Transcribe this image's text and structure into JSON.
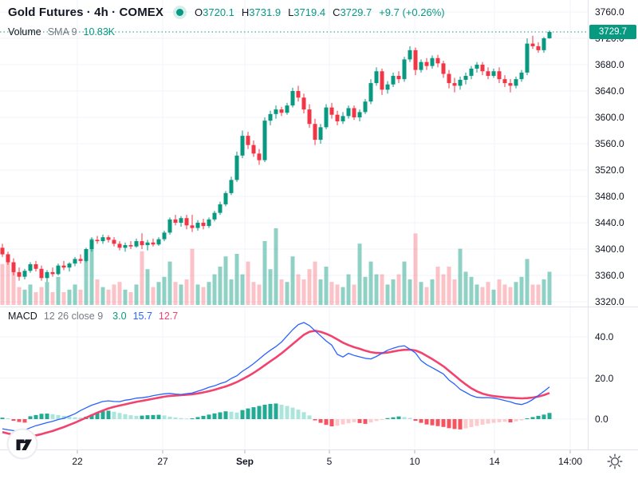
{
  "header": {
    "symbol_title": "Gold Futures · 4h · COMEX",
    "status_dot_color": "#089981",
    "ohlc": {
      "o_label": "O",
      "o": "3720.1",
      "h_label": "H",
      "h": "3731.9",
      "l_label": "L",
      "l": "3719.4",
      "c_label": "C",
      "c": "3729.7",
      "change": "+9.7 (+0.26%)"
    }
  },
  "volume_row": {
    "label": "Volume",
    "sma_label": "SMA 9",
    "value": "10.83K"
  },
  "macd_row": {
    "label": "MACD",
    "params": "12 26 close 9",
    "hist_value": "3.0",
    "macd_value": "15.7",
    "signal_value": "12.7"
  },
  "price_axis": {
    "ticks": [
      3760,
      3720,
      3680,
      3640,
      3600,
      3560,
      3520,
      3480,
      3440,
      3400,
      3360,
      3320
    ],
    "last_price": "3729.7"
  },
  "macd_axis": {
    "ticks": [
      40,
      20,
      0
    ]
  },
  "time_axis": {
    "ticks": [
      {
        "label": "22",
        "emphasis": false
      },
      {
        "label": "27",
        "emphasis": false
      },
      {
        "label": "Sep",
        "emphasis": true
      },
      {
        "label": "5",
        "emphasis": false
      },
      {
        "label": "10",
        "emphasis": false
      },
      {
        "label": "14",
        "emphasis": false
      },
      {
        "label": "14:00",
        "emphasis": false
      }
    ]
  },
  "icons": {
    "logo": "tradingview-logo",
    "theme_toggle": "sun-icon",
    "status": "market-status-dot"
  },
  "colors": {
    "up": "#089981",
    "down": "#F23645",
    "vol_up": "rgba(8,153,129,0.45)",
    "vol_down": "rgba(242,54,69,0.30)",
    "macd_line": "#2962FF",
    "signal_line": "#F2426E",
    "hist_pos_strong": "#22AB94",
    "hist_pos_weak": "#ACE5DC",
    "hist_neg_strong": "#F7525F",
    "hist_neg_weak": "#FCCBCD",
    "grid": "#F0F3FA",
    "separator": "#E0E3EB",
    "text_dark": "#131722",
    "text_gray": "#787B86",
    "tag_bg": "#089981",
    "tick_mark": "#B2B5BE"
  },
  "chart_data": {
    "type": "candlestick+volume+macd",
    "title": "Gold Futures · 4h · COMEX",
    "interval": "4h",
    "legend": [
      "Volume SMA 9",
      "MACD 12 26 close 9"
    ],
    "price_ylim": [
      3310,
      3765
    ],
    "macd_ylim": [
      -15,
      52
    ],
    "price_axis_ticks": [
      3760,
      3720,
      3680,
      3640,
      3600,
      3560,
      3520,
      3480,
      3440,
      3400,
      3360,
      3320
    ],
    "macd_axis_ticks": [
      40,
      20,
      0
    ],
    "time_ticks": [
      "22",
      "27",
      "Sep",
      "5",
      "10",
      "14",
      "14:00"
    ],
    "last_price": 3729.7,
    "last_bar_ohlc": [
      3720.1,
      3731.9,
      3719.4,
      3729.7
    ],
    "volume_sma": "10.83K",
    "candles_ohlc": [
      [
        3402,
        3408,
        3388,
        3392
      ],
      [
        3392,
        3396,
        3376,
        3380
      ],
      [
        3380,
        3386,
        3360,
        3365
      ],
      [
        3365,
        3372,
        3352,
        3358
      ],
      [
        3358,
        3370,
        3354,
        3367
      ],
      [
        3367,
        3380,
        3364,
        3377
      ],
      [
        3377,
        3382,
        3366,
        3370
      ],
      [
        3370,
        3375,
        3352,
        3356
      ],
      [
        3356,
        3368,
        3350,
        3365
      ],
      [
        3365,
        3372,
        3358,
        3362
      ],
      [
        3362,
        3378,
        3360,
        3375
      ],
      [
        3375,
        3382,
        3368,
        3372
      ],
      [
        3372,
        3380,
        3366,
        3378
      ],
      [
        3378,
        3388,
        3374,
        3385
      ],
      [
        3385,
        3392,
        3378,
        3382
      ],
      [
        3382,
        3402,
        3380,
        3400
      ],
      [
        3400,
        3418,
        3396,
        3414
      ],
      [
        3414,
        3420,
        3408,
        3412
      ],
      [
        3412,
        3422,
        3408,
        3418
      ],
      [
        3418,
        3421,
        3410,
        3414
      ],
      [
        3414,
        3418,
        3404,
        3408
      ],
      [
        3408,
        3412,
        3398,
        3402
      ],
      [
        3402,
        3410,
        3396,
        3406
      ],
      [
        3406,
        3412,
        3400,
        3404
      ],
      [
        3404,
        3416,
        3402,
        3412
      ],
      [
        3412,
        3424,
        3400,
        3406
      ],
      [
        3406,
        3414,
        3398,
        3410
      ],
      [
        3410,
        3416,
        3404,
        3407
      ],
      [
        3407,
        3418,
        3405,
        3415
      ],
      [
        3415,
        3428,
        3412,
        3425
      ],
      [
        3425,
        3448,
        3422,
        3445
      ],
      [
        3445,
        3452,
        3436,
        3440
      ],
      [
        3440,
        3450,
        3434,
        3447
      ],
      [
        3447,
        3452,
        3430,
        3436
      ],
      [
        3436,
        3452,
        3426,
        3432
      ],
      [
        3432,
        3444,
        3428,
        3440
      ],
      [
        3440,
        3446,
        3430,
        3435
      ],
      [
        3435,
        3448,
        3432,
        3445
      ],
      [
        3445,
        3458,
        3442,
        3455
      ],
      [
        3455,
        3472,
        3452,
        3468
      ],
      [
        3468,
        3488,
        3465,
        3485
      ],
      [
        3485,
        3510,
        3482,
        3505
      ],
      [
        3505,
        3548,
        3502,
        3542
      ],
      [
        3542,
        3580,
        3538,
        3572
      ],
      [
        3572,
        3578,
        3552,
        3558
      ],
      [
        3558,
        3565,
        3540,
        3545
      ],
      [
        3545,
        3552,
        3528,
        3535
      ],
      [
        3535,
        3600,
        3532,
        3595
      ],
      [
        3595,
        3610,
        3588,
        3605
      ],
      [
        3605,
        3618,
        3598,
        3612
      ],
      [
        3612,
        3616,
        3602,
        3607
      ],
      [
        3607,
        3622,
        3604,
        3618
      ],
      [
        3618,
        3645,
        3615,
        3640
      ],
      [
        3640,
        3648,
        3624,
        3630
      ],
      [
        3630,
        3636,
        3606,
        3612
      ],
      [
        3612,
        3620,
        3584,
        3590
      ],
      [
        3590,
        3598,
        3558,
        3566
      ],
      [
        3566,
        3590,
        3560,
        3585
      ],
      [
        3585,
        3620,
        3582,
        3615
      ],
      [
        3615,
        3622,
        3598,
        3604
      ],
      [
        3604,
        3610,
        3588,
        3594
      ],
      [
        3594,
        3608,
        3590,
        3602
      ],
      [
        3602,
        3618,
        3598,
        3614
      ],
      [
        3614,
        3618,
        3596,
        3600
      ],
      [
        3600,
        3612,
        3594,
        3608
      ],
      [
        3608,
        3628,
        3605,
        3624
      ],
      [
        3624,
        3658,
        3620,
        3652
      ],
      [
        3652,
        3676,
        3648,
        3670
      ],
      [
        3670,
        3674,
        3634,
        3642
      ],
      [
        3642,
        3655,
        3636,
        3650
      ],
      [
        3650,
        3668,
        3646,
        3663
      ],
      [
        3663,
        3670,
        3652,
        3658
      ],
      [
        3658,
        3692,
        3654,
        3688
      ],
      [
        3688,
        3708,
        3684,
        3702
      ],
      [
        3702,
        3706,
        3664,
        3672
      ],
      [
        3672,
        3688,
        3668,
        3684
      ],
      [
        3684,
        3690,
        3672,
        3678
      ],
      [
        3678,
        3694,
        3674,
        3690
      ],
      [
        3690,
        3695,
        3676,
        3682
      ],
      [
        3682,
        3686,
        3660,
        3666
      ],
      [
        3666,
        3672,
        3644,
        3652
      ],
      [
        3652,
        3660,
        3638,
        3648
      ],
      [
        3648,
        3662,
        3642,
        3657
      ],
      [
        3657,
        3668,
        3650,
        3663
      ],
      [
        3663,
        3678,
        3658,
        3674
      ],
      [
        3674,
        3684,
        3668,
        3680
      ],
      [
        3680,
        3684,
        3664,
        3670
      ],
      [
        3670,
        3676,
        3658,
        3663
      ],
      [
        3663,
        3674,
        3660,
        3670
      ],
      [
        3670,
        3676,
        3652,
        3658
      ],
      [
        3658,
        3664,
        3646,
        3652
      ],
      [
        3652,
        3658,
        3638,
        3648
      ],
      [
        3648,
        3662,
        3644,
        3658
      ],
      [
        3658,
        3672,
        3654,
        3668
      ],
      [
        3668,
        3720,
        3664,
        3712
      ],
      [
        3712,
        3724,
        3704,
        3708
      ],
      [
        3708,
        3714,
        3698,
        3702
      ],
      [
        3702,
        3722,
        3698,
        3720
      ],
      [
        3720.1,
        3731.9,
        3719.4,
        3729.7
      ]
    ],
    "volumes_k": [
      16,
      20,
      13,
      7,
      6,
      8,
      5,
      7,
      9,
      5,
      11,
      5,
      6,
      8,
      6,
      20,
      26,
      10,
      7,
      6,
      8,
      9,
      6,
      5,
      8,
      21,
      14,
      7,
      9,
      11,
      17,
      9,
      8,
      10,
      22,
      8,
      7,
      9,
      12,
      15,
      19,
      10,
      20,
      12,
      17,
      9,
      8,
      25,
      14,
      30,
      10,
      9,
      19,
      12,
      10,
      14,
      17,
      10,
      15,
      9,
      8,
      7,
      12,
      8,
      24,
      11,
      17,
      12,
      12,
      8,
      10,
      12,
      17,
      10,
      28,
      9,
      7,
      10,
      15,
      12,
      15,
      10,
      22,
      13,
      11,
      8,
      7,
      9,
      6,
      10,
      8,
      7,
      9,
      11,
      18,
      8,
      8,
      10,
      13
    ],
    "macd_line": [
      -4.7,
      -5.2,
      -5.6,
      -5.8,
      -5.3,
      -4.2,
      -3.2,
      -2.5,
      -1.7,
      -1.1,
      -0.2,
      0.4,
      1.5,
      2.6,
      4.2,
      5.5,
      6.8,
      7.7,
      8.6,
      8.9,
      8.6,
      8.5,
      9.2,
      9.6,
      10.2,
      10.4,
      10.8,
      11.4,
      11.9,
      12.3,
      12.5,
      12.2,
      12.0,
      12.4,
      12.7,
      13.6,
      14.4,
      15.5,
      16.2,
      17.3,
      18.1,
      19.8,
      21.1,
      23.3,
      25.0,
      27.0,
      29.2,
      31.5,
      33.5,
      35.3,
      37.5,
      40.5,
      43.5,
      46.0,
      47.0,
      45.5,
      43.0,
      40.5,
      38.0,
      36.0,
      31.5,
      30.2,
      32.0,
      31.0,
      30.3,
      29.6,
      29.3,
      30.5,
      32.0,
      33.5,
      34.5,
      35.3,
      35.7,
      34.0,
      32.2,
      28.5,
      26.5,
      25.0,
      23.5,
      22.0,
      19.0,
      17.0,
      14.5,
      13.0,
      11.5,
      10.6,
      10.4,
      10.5,
      10.2,
      9.7,
      9.0,
      8.4,
      7.5,
      7.1,
      8.0,
      9.5,
      11.5,
      13.5,
      15.7
    ],
    "signal_line": [
      -6.3,
      -7.0,
      -7.6,
      -8.1,
      -8.4,
      -8.3,
      -7.9,
      -7.3,
      -6.5,
      -5.8,
      -4.8,
      -3.9,
      -2.8,
      -1.7,
      -0.5,
      0.7,
      1.9,
      3.1,
      4.2,
      5.2,
      6.0,
      6.6,
      7.2,
      7.8,
      8.4,
      8.9,
      9.4,
      9.9,
      10.4,
      10.9,
      11.3,
      11.5,
      11.7,
      11.9,
      12.1,
      12.5,
      13.0,
      13.6,
      14.3,
      15.1,
      15.9,
      16.9,
      18.0,
      19.4,
      20.9,
      22.5,
      24.3,
      26.2,
      28.1,
      30.0,
      32.0,
      34.2,
      36.5,
      38.8,
      41.0,
      42.5,
      43.0,
      42.5,
      41.5,
      40.3,
      38.8,
      37.2,
      36.0,
      35.0,
      34.2,
      33.3,
      32.6,
      32.2,
      32.1,
      32.4,
      32.9,
      33.4,
      33.7,
      33.8,
      33.4,
      32.3,
      30.8,
      29.2,
      27.5,
      25.7,
      23.5,
      21.3,
      19.0,
      16.9,
      15.0,
      13.5,
      12.4,
      11.7,
      11.2,
      10.9,
      10.6,
      10.4,
      10.2,
      10.1,
      10.2,
      10.5,
      11.0,
      11.7,
      12.7
    ],
    "macd_histogram": [
      0.7,
      0.4,
      -0.8,
      -1.4,
      -1.7,
      1.4,
      2.0,
      2.6,
      2.7,
      2.4,
      2.0,
      1.6,
      1.2,
      0.9,
      0.7,
      1.2,
      2.2,
      3.2,
      3.9,
      4.1,
      3.6,
      3.0,
      2.4,
      1.9,
      1.6,
      1.7,
      1.9,
      2.0,
      2.1,
      1.8,
      1.2,
      0.8,
      0.5,
      0.3,
      0.4,
      1.0,
      1.6,
      2.2,
      2.8,
      3.3,
      3.8,
      3.6,
      3.2,
      4.4,
      5.2,
      5.8,
      6.4,
      7.0,
      7.4,
      7.6,
      7.0,
      6.4,
      5.6,
      4.6,
      3.4,
      1.8,
      -0.6,
      -1.8,
      -2.8,
      -3.5,
      -3.2,
      -2.6,
      -2.0,
      -1.5,
      -1.9,
      -2.3,
      -1.6,
      -0.9,
      -0.4,
      0.5,
      0.9,
      1.3,
      1.0,
      0.6,
      -0.8,
      -1.8,
      -2.6,
      -3.0,
      -3.4,
      -3.8,
      -4.4,
      -4.8,
      -5.0,
      -4.5,
      -3.9,
      -3.3,
      -2.7,
      -2.2,
      -1.8,
      -1.5,
      -1.3,
      -1.6,
      -1.1,
      -0.6,
      0.4,
      1.0,
      1.6,
      2.2,
      3.0
    ]
  }
}
